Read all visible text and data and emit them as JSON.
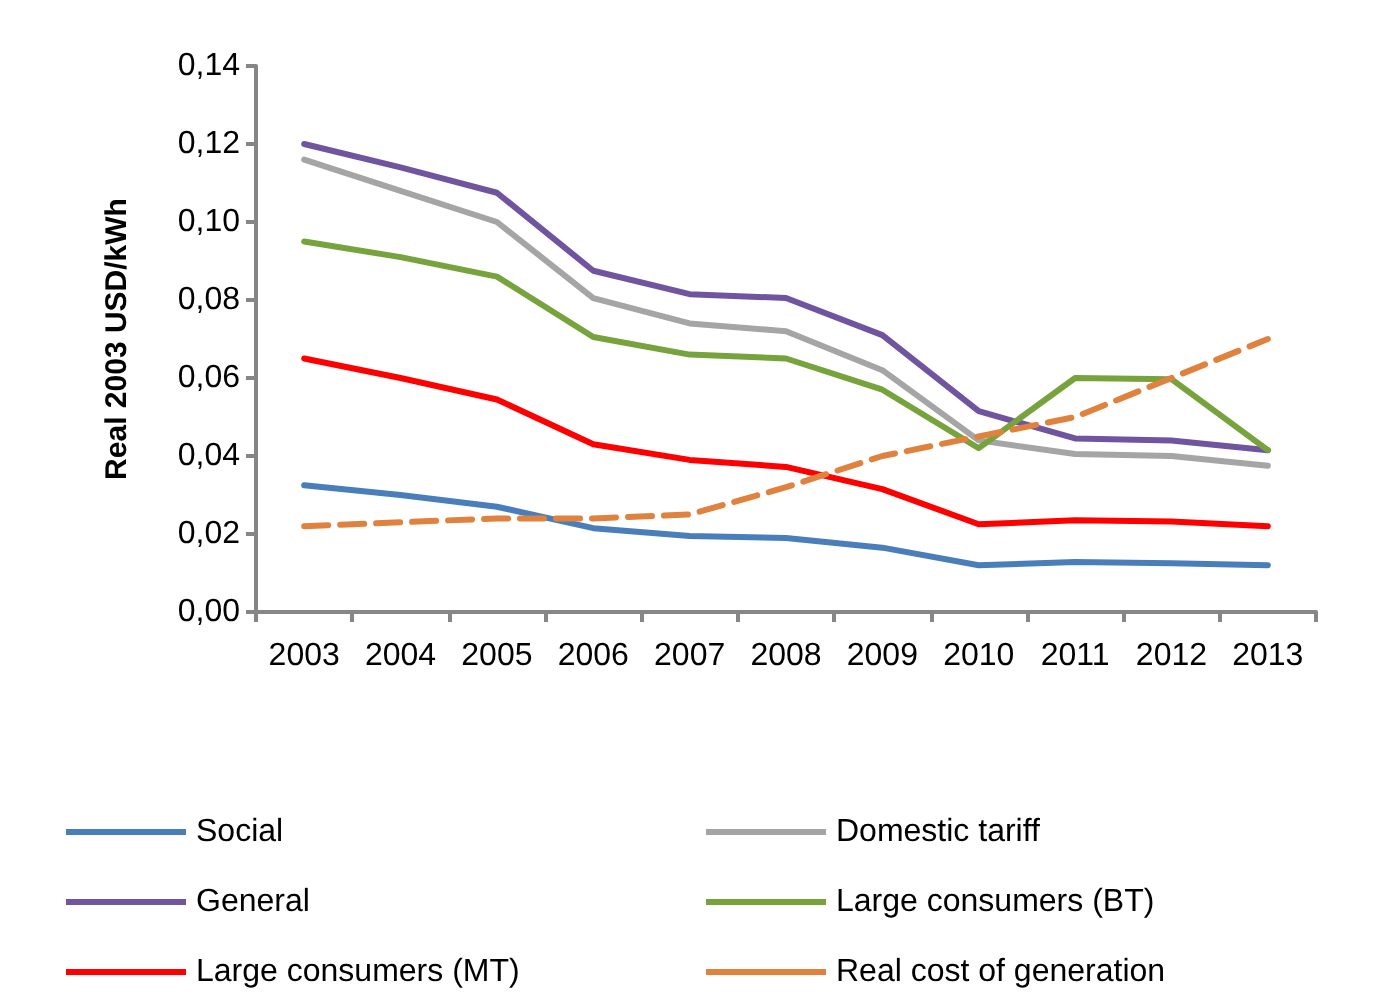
{
  "chart_data": {
    "type": "line",
    "ylabel": "Real 2003 USD/kWh",
    "categories": [
      "2003",
      "2004",
      "2005",
      "2006",
      "2007",
      "2008",
      "2009",
      "2010",
      "2011",
      "2012",
      "2013"
    ],
    "ylim": [
      0,
      0.14
    ],
    "yticks": [
      {
        "value": 0,
        "label": "0,00"
      },
      {
        "value": 0.02,
        "label": "0,02"
      },
      {
        "value": 0.04,
        "label": "0,04"
      },
      {
        "value": 0.06,
        "label": "0,06"
      },
      {
        "value": 0.08,
        "label": "0,08"
      },
      {
        "value": 0.1,
        "label": "0,10"
      },
      {
        "value": 0.12,
        "label": "0,12"
      },
      {
        "value": 0.14,
        "label": "0,14"
      }
    ],
    "grid": false,
    "legend": "bottom",
    "marker": "none",
    "series": [
      {
        "name": "Social",
        "color": "#4a7ebb",
        "values": [
          0.0325,
          0.03,
          0.027,
          0.0215,
          0.0195,
          0.019,
          0.0165,
          0.012,
          0.0128,
          0.0125,
          0.012
        ]
      },
      {
        "name": "Domestic tariff",
        "color": "#a5a5a5",
        "values": [
          0.116,
          0.108,
          0.1,
          0.0805,
          0.074,
          0.072,
          0.062,
          0.044,
          0.0405,
          0.04,
          0.0375
        ]
      },
      {
        "name": "General",
        "color": "#7054a0",
        "values": [
          0.12,
          0.114,
          0.1075,
          0.0875,
          0.0815,
          0.0805,
          0.071,
          0.0515,
          0.0445,
          0.044,
          0.0415
        ]
      },
      {
        "name": "Large consumers (BT)",
        "color": "#77a33c",
        "values": [
          0.095,
          0.091,
          0.086,
          0.0705,
          0.066,
          0.065,
          0.057,
          0.042,
          0.06,
          0.0597,
          0.0415
        ]
      },
      {
        "name": "Large consumers (MT)",
        "color": "#ff0000",
        "values": [
          0.065,
          0.06,
          0.0545,
          0.043,
          0.039,
          0.0372,
          0.0315,
          0.0225,
          0.0235,
          0.0232,
          0.022
        ]
      },
      {
        "name": "Real cost of generation",
        "color": "#e0823d",
        "line_style": "dashed",
        "values": [
          0.022,
          0.023,
          0.024,
          0.024,
          0.025,
          0.032,
          0.04,
          0.045,
          0.05,
          0.06,
          0.07
        ]
      }
    ]
  }
}
